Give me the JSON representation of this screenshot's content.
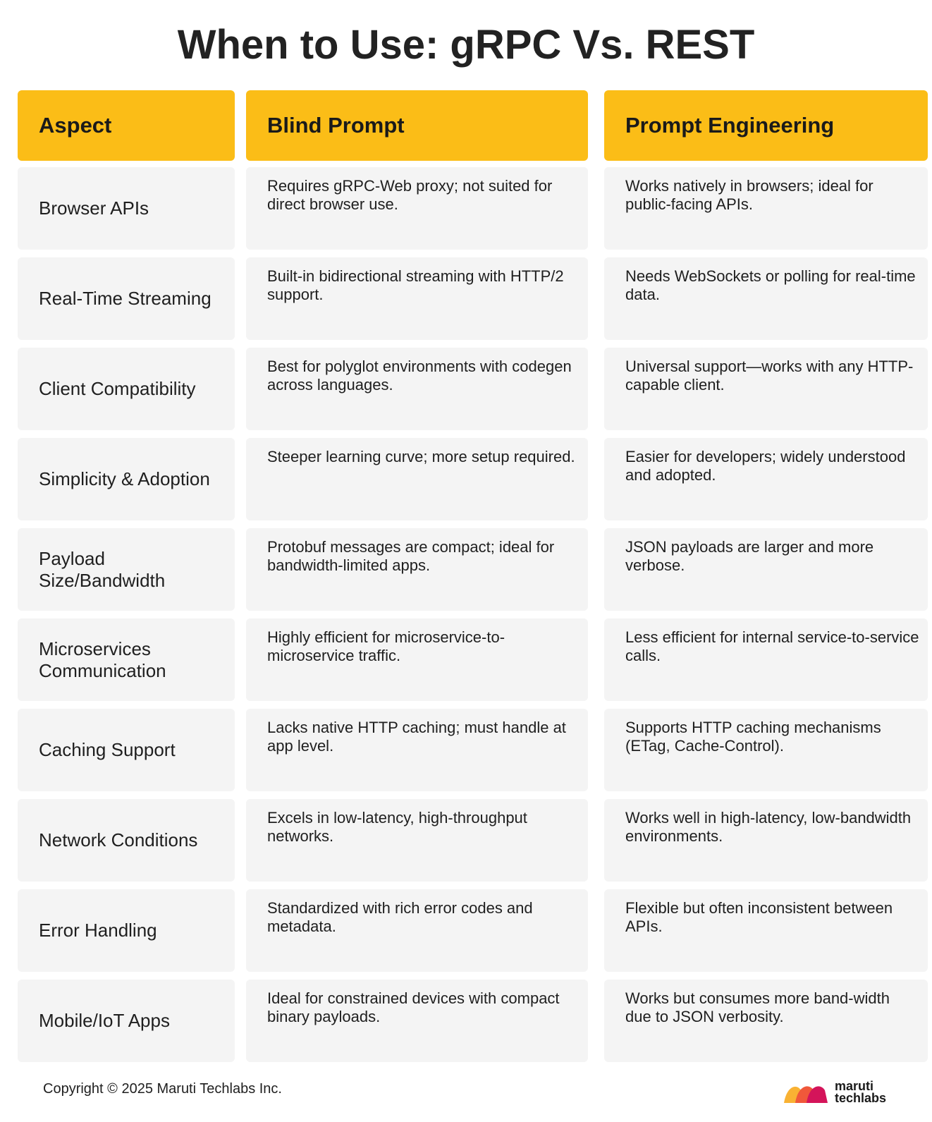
{
  "title": "When to Use: gRPC Vs. REST",
  "table": {
    "headers": [
      "Aspect",
      "Blind Prompt",
      "Prompt Engineering"
    ],
    "rows": [
      {
        "aspect": "Browser APIs",
        "blind": "Requires gRPC-Web proxy; not suited for direct browser use.",
        "engineering": "Works natively in browsers; ideal for public-facing APIs."
      },
      {
        "aspect": "Real-Time Streaming",
        "blind": "Built-in bidirectional streaming with HTTP/2 support.",
        "engineering": "Needs WebSockets or polling for real-time data."
      },
      {
        "aspect": "Client Compatibility",
        "blind": "Best for polyglot environments with codegen across languages.",
        "engineering": "Universal support—works with any HTTP-capable client."
      },
      {
        "aspect": "Simplicity & Adoption",
        "blind": "Steeper learning curve; more setup required.",
        "engineering": "Easier for developers; widely understood and adopted."
      },
      {
        "aspect": "Payload Size/Bandwidth",
        "blind": "Protobuf messages are compact; ideal for bandwidth-limited apps.",
        "engineering": "JSON payloads are larger and more verbose."
      },
      {
        "aspect": "Microservices Communication",
        "blind": "Highly efficient for microservice-to-microservice traffic.",
        "engineering": "Less efficient for internal service-to-service calls."
      },
      {
        "aspect": "Caching Support",
        "blind": "Lacks native HTTP caching; must handle at app level.",
        "engineering": "Supports HTTP caching mechanisms (ETag, Cache-Control)."
      },
      {
        "aspect": "Network Conditions",
        "blind": "Excels in low-latency, high-throughput networks.",
        "engineering": "Works well in high-latency, low-bandwidth environments."
      },
      {
        "aspect": "Error Handling",
        "blind": "Standardized with rich error codes and metadata.",
        "engineering": "Flexible but often inconsistent between APIs."
      },
      {
        "aspect": "Mobile/IoT Apps",
        "blind": "Ideal for constrained devices with compact binary payloads.",
        "engineering": "Works but consumes more band-width due to JSON verbosity."
      }
    ]
  },
  "footer": {
    "copyright": "Copyright © 2025 Maruti Techlabs Inc.",
    "logo_line1": "maruti",
    "logo_line2": "techlabs",
    "logo_icon": "maruti-techlabs-logo-icon"
  },
  "colors": {
    "header_bg": "#fbbd17",
    "cell_bg": "#f4f4f4",
    "logo_yellow": "#f9b233",
    "logo_orange": "#f0583a",
    "logo_pink": "#d4145a"
  }
}
